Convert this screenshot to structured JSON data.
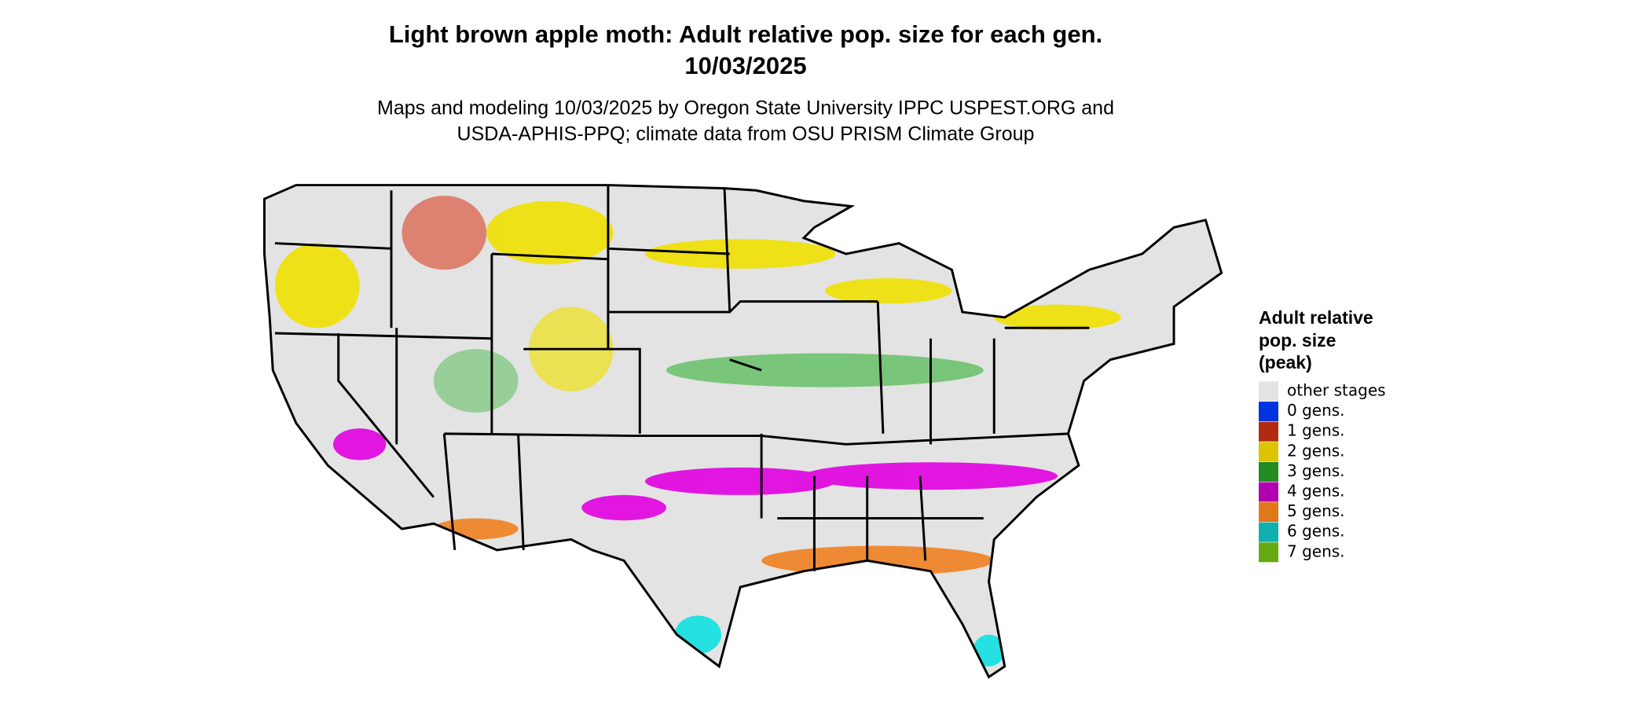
{
  "header": {
    "title": [
      "Light brown apple moth: Adult relative pop. size for each gen.",
      "10/03/2025"
    ],
    "subtitle": [
      "Maps and modeling 10/03/2025 by Oregon State University IPPC USPEST.ORG and",
      "USDA-APHIS-PPQ; climate data from OSU PRISM Climate Group"
    ]
  },
  "legend": {
    "title": [
      "Adult relative",
      "pop. size",
      "(peak)"
    ],
    "items": [
      {
        "label": "other stages",
        "color": "#e3e3e3"
      },
      {
        "label": "0 gens.",
        "color": "#0033dd"
      },
      {
        "label": "1 gens.",
        "color": "#b22a10"
      },
      {
        "label": "2 gens.",
        "color": "#dcc400"
      },
      {
        "label": "3 gens.",
        "color": "#228b22"
      },
      {
        "label": "4 gens.",
        "color": "#b000b0"
      },
      {
        "label": "5 gens.",
        "color": "#e07818"
      },
      {
        "label": "6 gens.",
        "color": "#10b0b0"
      },
      {
        "label": "7 gens.",
        "color": "#66aa11"
      }
    ]
  }
}
